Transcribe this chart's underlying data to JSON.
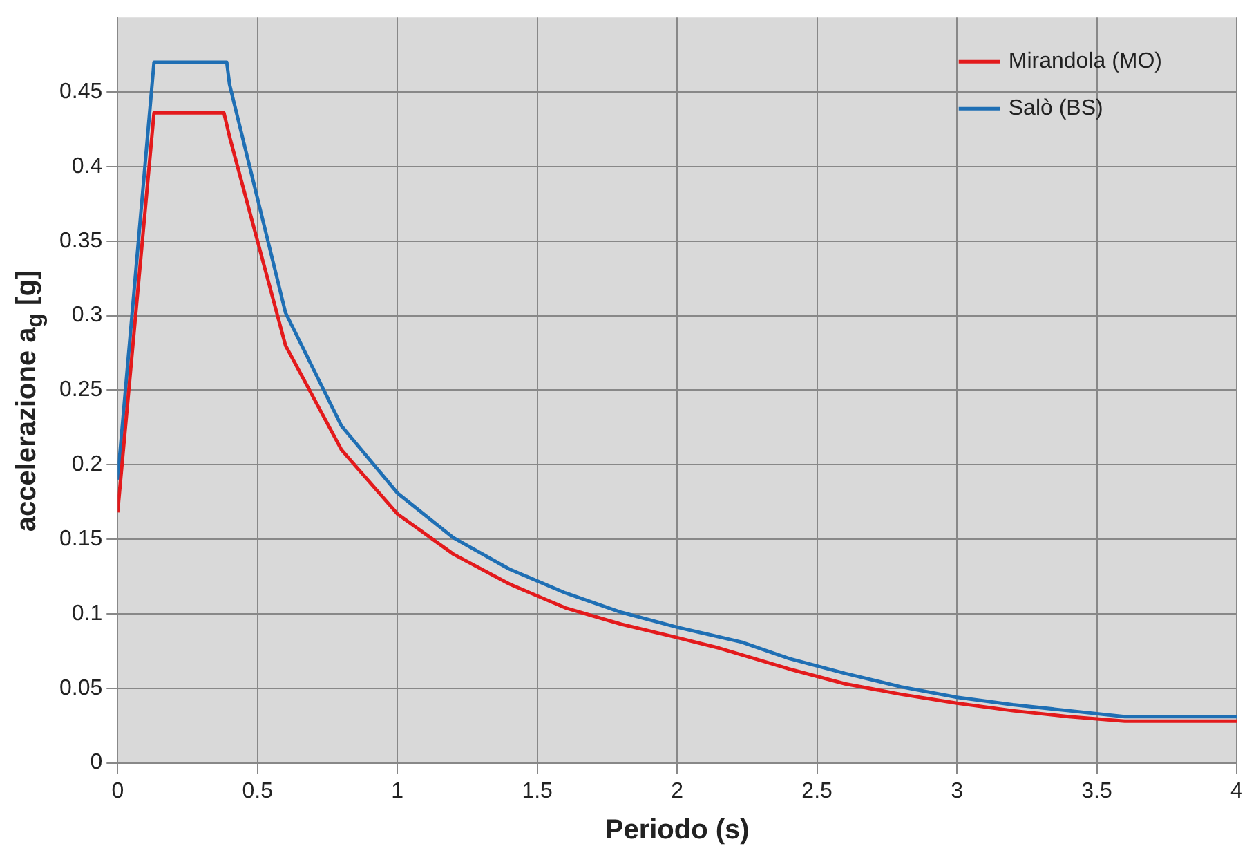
{
  "chart_data": {
    "type": "line",
    "xlabel": "Periodo (s)",
    "ylabel": "accelerazione a$_{g}$ [g]",
    "xlim": [
      0,
      4
    ],
    "xticks": [
      0,
      0.5,
      1,
      1.5,
      2,
      2.5,
      3,
      3.5,
      4
    ],
    "ylim": [
      0,
      0.5
    ],
    "yticks": [
      0,
      0.05,
      0.1,
      0.15,
      0.2,
      0.25,
      0.3,
      0.35,
      0.4,
      0.45
    ],
    "grid": true,
    "legend": "top right",
    "marker": "none",
    "line_style": "solid",
    "series": [
      {
        "name": "Mirandola (MO)",
        "color": "#e31a1c",
        "x": [
          0,
          0.13,
          0.38,
          0.4,
          0.6,
          0.8,
          1,
          1.2,
          1.4,
          1.6,
          1.8,
          2,
          2.15,
          2.4,
          2.6,
          2.8,
          3,
          3.2,
          3.4,
          3.6,
          4
        ],
        "values": [
          0.168,
          0.436,
          0.436,
          0.42,
          0.28,
          0.21,
          0.167,
          0.14,
          0.12,
          0.104,
          0.093,
          0.084,
          0.077,
          0.063,
          0.053,
          0.046,
          0.04,
          0.035,
          0.031,
          0.028,
          0.028
        ]
      },
      {
        "name": "Salò (BS)",
        "color": "#1f6fb4",
        "x": [
          0,
          0.13,
          0.39,
          0.4,
          0.6,
          0.8,
          1,
          1.2,
          1.4,
          1.6,
          1.8,
          2,
          2.23,
          2.4,
          2.6,
          2.8,
          3,
          3.2,
          3.4,
          3.6,
          4
        ],
        "values": [
          0.19,
          0.47,
          0.47,
          0.455,
          0.302,
          0.226,
          0.181,
          0.151,
          0.13,
          0.114,
          0.101,
          0.091,
          0.081,
          0.07,
          0.06,
          0.051,
          0.044,
          0.039,
          0.035,
          0.031,
          0.031
        ]
      }
    ]
  }
}
